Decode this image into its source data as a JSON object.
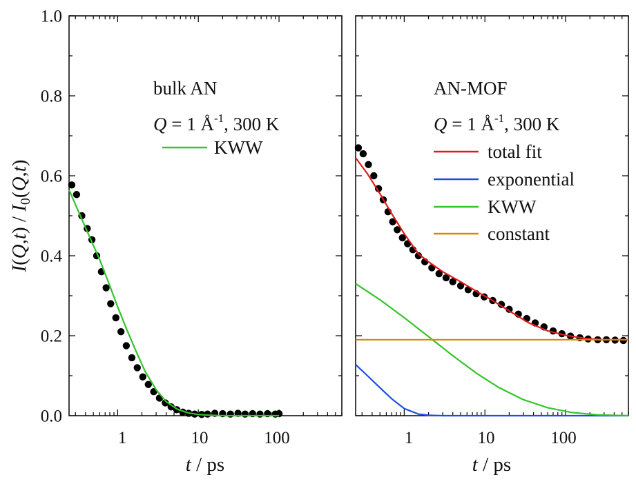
{
  "chart_data": [
    {
      "type": "scatter",
      "panel": "left",
      "title": "",
      "xlabel": "t / ps",
      "ylabel": "I(Q,t) / I0(Q,t)",
      "xscale": "log",
      "xlim": [
        0.25,
        600
      ],
      "ylim": [
        0,
        1
      ],
      "xticks": [
        1,
        10,
        100
      ],
      "xtick_labels": [
        "1",
        "10",
        "100"
      ],
      "yticks": [
        0,
        0.2,
        0.4,
        0.6,
        0.8,
        1.0
      ],
      "ytick_labels": [
        "0.0",
        "0.2",
        "0.4",
        "0.6",
        "0.8",
        "1.0"
      ],
      "annotation": [
        "bulk AN",
        "Q = 1 Å",
        "-1",
        ", 300 K"
      ],
      "legend_position": "upper-right",
      "series": [
        {
          "name": "",
          "kind": "points",
          "color": "#000000",
          "x": [
            0.27,
            0.31,
            0.36,
            0.42,
            0.48,
            0.55,
            0.63,
            0.72,
            0.82,
            0.95,
            1.1,
            1.28,
            1.5,
            1.75,
            2.05,
            2.4,
            2.8,
            3.3,
            3.9,
            4.6,
            5.4,
            6.4,
            7.6,
            9.0,
            11,
            13,
            16,
            20,
            25,
            31,
            38,
            47,
            58,
            72,
            90,
            100
          ],
          "y": [
            0.577,
            0.553,
            0.5,
            0.468,
            0.44,
            0.4,
            0.36,
            0.32,
            0.28,
            0.245,
            0.21,
            0.175,
            0.145,
            0.12,
            0.097,
            0.078,
            0.06,
            0.044,
            0.032,
            0.022,
            0.015,
            0.009,
            0.006,
            0.004,
            0.003,
            0.004,
            0.006,
            0.005,
            0.004,
            0.006,
            0.004,
            0.005,
            0.004,
            0.005,
            0.004,
            0.005
          ]
        },
        {
          "name": "KWW",
          "kind": "line",
          "color": "#33c42a",
          "x": [
            0.25,
            0.4,
            0.6,
            0.8,
            1.0,
            1.3,
            1.7,
            2.2,
            3.0,
            4.0,
            5.5,
            7.5,
            10,
            14,
            20,
            40,
            100
          ],
          "y": [
            0.565,
            0.47,
            0.39,
            0.325,
            0.272,
            0.215,
            0.16,
            0.11,
            0.065,
            0.035,
            0.016,
            0.007,
            0.003,
            0.001,
            0.0,
            0.0,
            0.0
          ]
        }
      ]
    },
    {
      "type": "scatter",
      "panel": "right",
      "title": "",
      "xlabel": "t / ps",
      "ylabel": "",
      "xscale": "log",
      "xlim": [
        0.25,
        600
      ],
      "ylim": [
        0,
        1
      ],
      "xticks": [
        1,
        10,
        100
      ],
      "xtick_labels": [
        "1",
        "10",
        "100"
      ],
      "annotation": [
        "AN-MOF",
        "Q = 1 Å",
        "-1",
        ", 300 K"
      ],
      "legend_position": "upper-right",
      "series": [
        {
          "name": "",
          "kind": "points",
          "color": "#000000",
          "x": [
            0.27,
            0.31,
            0.36,
            0.42,
            0.48,
            0.55,
            0.63,
            0.72,
            0.82,
            0.95,
            1.1,
            1.28,
            1.5,
            1.8,
            2.2,
            2.7,
            3.3,
            4.0,
            5.0,
            6.2,
            7.8,
            9.8,
            12.5,
            16,
            20,
            26,
            33,
            42,
            54,
            70,
            90,
            115,
            150,
            190,
            250,
            320,
            410,
            520
          ],
          "y": [
            0.67,
            0.655,
            0.628,
            0.6,
            0.568,
            0.54,
            0.51,
            0.485,
            0.465,
            0.445,
            0.43,
            0.415,
            0.4,
            0.385,
            0.37,
            0.355,
            0.345,
            0.335,
            0.325,
            0.315,
            0.305,
            0.297,
            0.288,
            0.278,
            0.266,
            0.254,
            0.243,
            0.232,
            0.222,
            0.212,
            0.205,
            0.199,
            0.195,
            0.192,
            0.19,
            0.19,
            0.189,
            0.188
          ]
        },
        {
          "name": "total fit",
          "kind": "line",
          "color": "#e01b1b",
          "x": [
            0.25,
            0.35,
            0.5,
            0.7,
            1.0,
            1.5,
            2.0,
            3.0,
            5.0,
            8.0,
            12,
            20,
            35,
            60,
            100,
            180,
            300,
            600
          ],
          "y": [
            0.645,
            0.605,
            0.555,
            0.505,
            0.455,
            0.405,
            0.385,
            0.36,
            0.335,
            0.31,
            0.29,
            0.262,
            0.232,
            0.212,
            0.201,
            0.193,
            0.19,
            0.19
          ]
        },
        {
          "name": "exponential",
          "kind": "line",
          "color": "#1a4fe0",
          "x": [
            0.25,
            0.35,
            0.5,
            0.7,
            1.0,
            1.5,
            2.0,
            3.0,
            5.0,
            10,
            100,
            600
          ],
          "y": [
            0.128,
            0.1,
            0.07,
            0.042,
            0.018,
            0.004,
            0.001,
            0.0,
            0.0,
            0.0,
            0.0,
            0.0
          ]
        },
        {
          "name": "KWW",
          "kind": "line",
          "color": "#33c42a",
          "x": [
            0.25,
            0.5,
            1.0,
            2.0,
            4.0,
            8.0,
            15,
            30,
            60,
            120,
            250,
            600
          ],
          "y": [
            0.33,
            0.29,
            0.245,
            0.198,
            0.15,
            0.105,
            0.07,
            0.04,
            0.02,
            0.008,
            0.002,
            0.0
          ]
        },
        {
          "name": "constant",
          "kind": "line",
          "color": "#d4880f",
          "x": [
            0.25,
            600
          ],
          "y": [
            0.19,
            0.19
          ]
        }
      ]
    }
  ]
}
